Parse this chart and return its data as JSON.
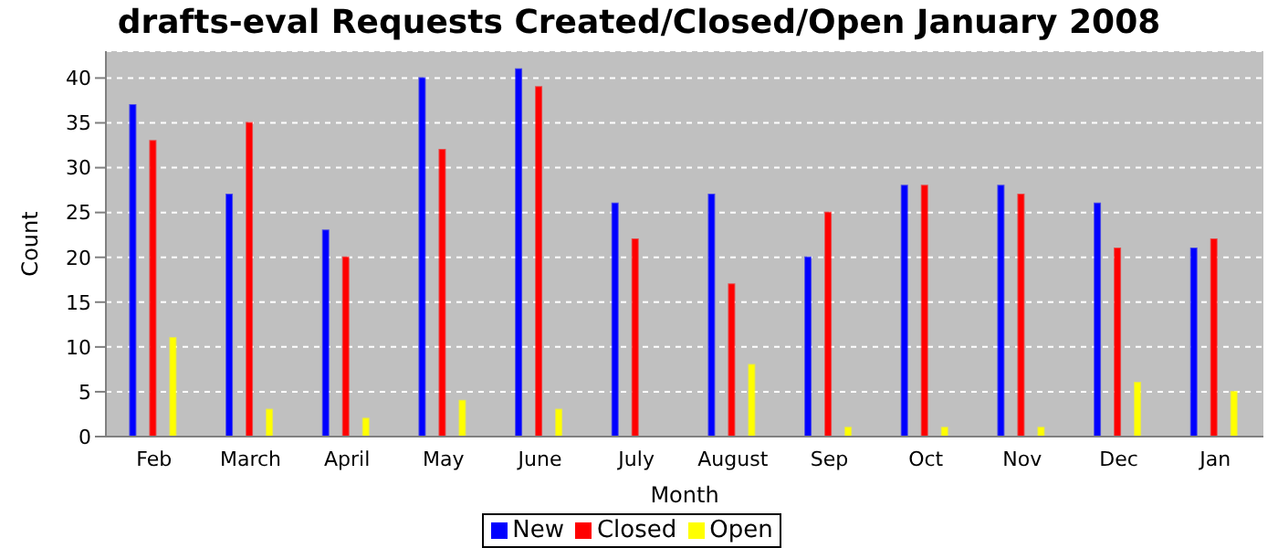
{
  "chart_data": {
    "type": "bar",
    "title": "drafts-eval Requests Created/Closed/Open January 2008",
    "xlabel": "Month",
    "ylabel": "Count",
    "categories": [
      "Feb",
      "March",
      "April",
      "May",
      "June",
      "July",
      "August",
      "Sep",
      "Oct",
      "Nov",
      "Dec",
      "Jan"
    ],
    "series": [
      {
        "name": "New",
        "color": "#0000ff",
        "values": [
          37,
          27,
          23,
          40,
          41,
          26,
          27,
          20,
          28,
          28,
          26,
          21
        ]
      },
      {
        "name": "Closed",
        "color": "#ff0000",
        "values": [
          33,
          35,
          20,
          32,
          39,
          22,
          17,
          25,
          28,
          27,
          21,
          22
        ]
      },
      {
        "name": "Open",
        "color": "#ffff00",
        "values": [
          11,
          3,
          2,
          4,
          3,
          0,
          8,
          1,
          1,
          1,
          6,
          5
        ]
      }
    ],
    "ylim": [
      0,
      43
    ],
    "yticks": [
      0,
      5,
      10,
      15,
      20,
      25,
      30,
      35,
      40
    ],
    "grid": "y",
    "legend": "bottom"
  }
}
